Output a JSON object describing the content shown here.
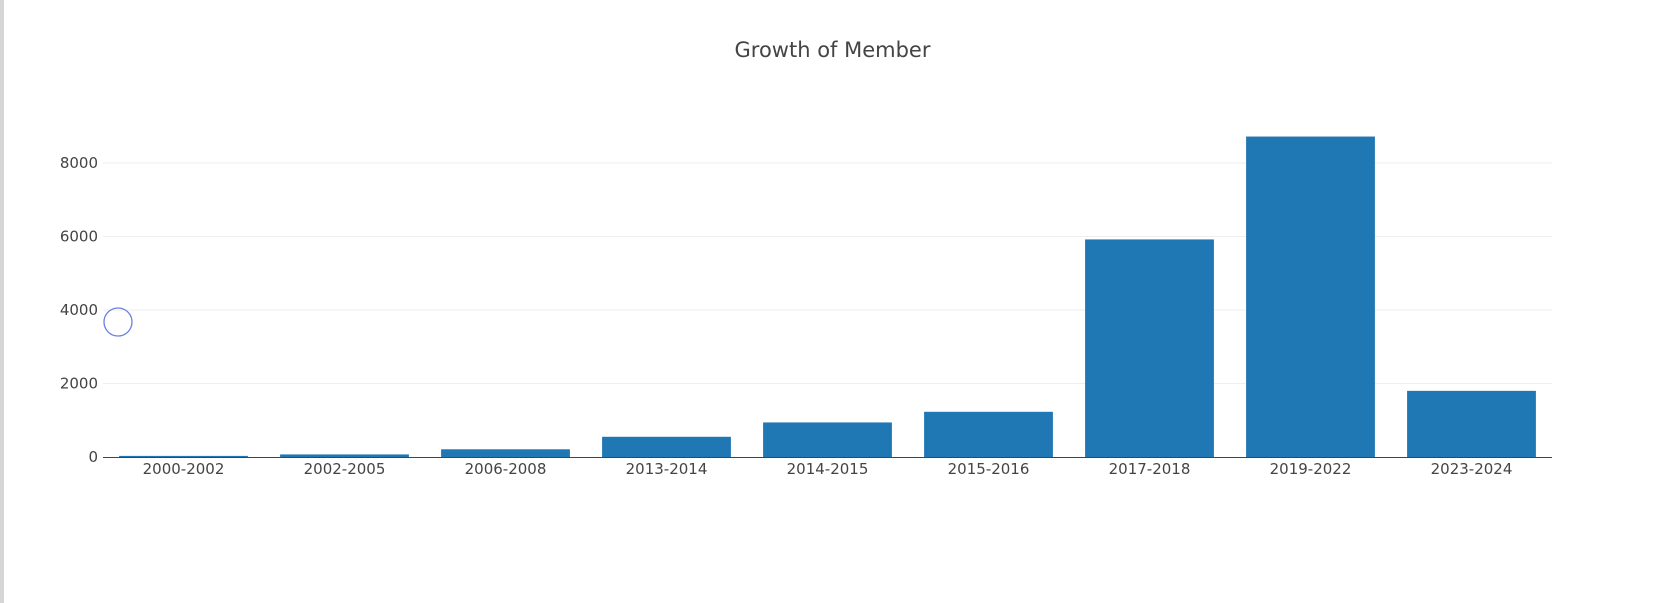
{
  "chart_data": {
    "type": "bar",
    "title": "Growth of Member",
    "xlabel": "",
    "ylabel": "",
    "categories": [
      "2000-2002",
      "2002-2005",
      "2006-2008",
      "2013-2014",
      "2014-2015",
      "2015-2016",
      "2017-2018",
      "2019-2022",
      "2023-2024"
    ],
    "values": [
      30,
      70,
      210,
      550,
      940,
      1230,
      5920,
      8720,
      1800
    ],
    "ylim": [
      0,
      9000
    ],
    "yticks": [
      0,
      2000,
      4000,
      6000,
      8000
    ],
    "ytick_labels": [
      "0",
      "2000",
      "4000",
      "6000",
      "8000"
    ],
    "bar_color": "#1f77b4",
    "grid": true,
    "legend": "none"
  }
}
